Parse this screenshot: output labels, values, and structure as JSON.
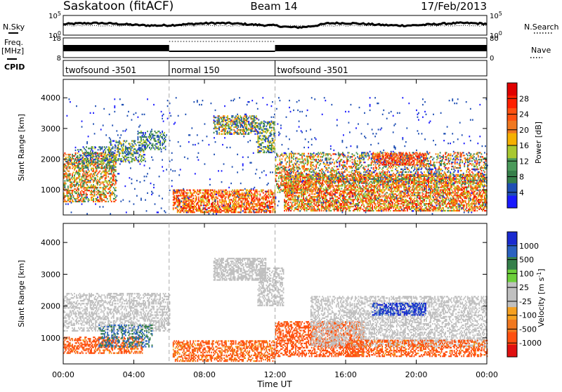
{
  "header": {
    "station": "Saskatoon (fitACF)",
    "beam": "Beam 14",
    "date": "17/Feb/2013"
  },
  "strip_labels": {
    "nsky": "N.Sky",
    "freq_line1": "Freq.",
    "freq_line2": "[MHz]",
    "cpid": "CPID",
    "nsearch": "N.Search",
    "nave": "Nave"
  },
  "noise_axis": {
    "left_ticks": [
      {
        "text": "10^5",
        "level": 1.0
      },
      {
        "text": "10^0",
        "level": 0.0
      }
    ],
    "right_ticks": [
      {
        "text": "10^5",
        "level": 1.0
      },
      {
        "text": "10^0",
        "level": 0.0
      }
    ]
  },
  "freq_axis": {
    "left_ticks": [
      {
        "text": "18",
        "level": 1.0
      },
      {
        "text": "8",
        "level": 0.0
      }
    ],
    "right_ticks": [
      {
        "text": "80",
        "level": 1.0
      },
      {
        "text": "0",
        "level": 0.0
      }
    ]
  },
  "cpid_segments": [
    {
      "label": "twofsound -3501",
      "start_hour": 0,
      "end_hour": 6
    },
    {
      "label": "normal 150",
      "start_hour": 6,
      "end_hour": 12
    },
    {
      "label": "twofsound -3501",
      "start_hour": 12,
      "end_hour": 24
    }
  ],
  "x_axis": {
    "label": "Time UT",
    "range_hours": [
      0,
      24
    ],
    "ticks": [
      {
        "hour": 0,
        "text": "00:00"
      },
      {
        "hour": 4,
        "text": "04:00"
      },
      {
        "hour": 8,
        "text": "08:00"
      },
      {
        "hour": 12,
        "text": "12:00"
      },
      {
        "hour": 16,
        "text": "16:00"
      },
      {
        "hour": 20,
        "text": "20:00"
      },
      {
        "hour": 24,
        "text": "00:00"
      }
    ],
    "dashed_markers_hours": [
      6,
      12
    ]
  },
  "range_axis": {
    "label": "Slant Range [km]",
    "range_km": [
      180,
      4600
    ],
    "ticks": [
      {
        "km": 1000,
        "text": "1000"
      },
      {
        "km": 2000,
        "text": "2000"
      },
      {
        "km": 3000,
        "text": "3000"
      },
      {
        "km": 4000,
        "text": "4000"
      }
    ]
  },
  "power_scale": {
    "label": "Power [dB]",
    "colors": [
      "#1a1aff",
      "#1f4fb4",
      "#357f4a",
      "#4a9a5a",
      "#a8c830",
      "#f5b000",
      "#f07820",
      "#ff5010",
      "#ff2000",
      "#e00000"
    ],
    "ticks": [
      "4",
      "8",
      "12",
      "16",
      "20",
      "24",
      "28"
    ]
  },
  "velocity_scale": {
    "label": "Velocity [m s^-1]",
    "colors": [
      "#e01010",
      "#ff5010",
      "#f07820",
      "#f5a020",
      "#c0c0c0",
      "#c0c0c0",
      "#6ccf3a",
      "#357f4a",
      "#2b62c0",
      "#1a2ad0"
    ],
    "ticks": [
      "-1000",
      "-500",
      "-100",
      "-25",
      "25",
      "100",
      "500",
      "1000"
    ]
  },
  "chart_data": {
    "type": "heatmap",
    "title": "Saskatoon (fitACF) Beam 14 17/Feb/2013",
    "xlabel": "Time UT",
    "ylabel": "Slant Range [km]",
    "xlim_hours": [
      0,
      24
    ],
    "ylim_km": [
      180,
      4600
    ],
    "panels": [
      {
        "name": "Power [dB]",
        "scatter_regions": [
          {
            "h0": 0.0,
            "h1": 3.0,
            "r0": 600,
            "r1": 2200,
            "values": [
              8,
              28
            ],
            "density": 0.5
          },
          {
            "h0": 0.8,
            "h1": 2.8,
            "r0": 1700,
            "r1": 2400,
            "values": [
              4,
              16
            ],
            "density": 0.3
          },
          {
            "h0": 2.6,
            "h1": 4.6,
            "r0": 1900,
            "r1": 2600,
            "values": [
              4,
              20
            ],
            "density": 0.4
          },
          {
            "h0": 4.2,
            "h1": 5.8,
            "r0": 2300,
            "r1": 2900,
            "values": [
              4,
              16
            ],
            "density": 0.4
          },
          {
            "h0": 6.2,
            "h1": 12.0,
            "r0": 250,
            "r1": 1000,
            "values": [
              16,
              30
            ],
            "density": 0.6
          },
          {
            "h0": 8.5,
            "h1": 11.0,
            "r0": 2800,
            "r1": 3400,
            "values": [
              4,
              24
            ],
            "density": 0.55
          },
          {
            "h0": 11.0,
            "h1": 12.0,
            "r0": 2200,
            "r1": 3200,
            "values": [
              4,
              20
            ],
            "density": 0.5
          },
          {
            "h0": 12.0,
            "h1": 14.0,
            "r0": 900,
            "r1": 2200,
            "values": [
              8,
              28
            ],
            "density": 0.4
          },
          {
            "h0": 12.5,
            "h1": 24.0,
            "r0": 300,
            "r1": 1500,
            "values": [
              12,
              30
            ],
            "density": 0.6
          },
          {
            "h0": 14.0,
            "h1": 24.0,
            "r0": 1200,
            "r1": 2200,
            "values": [
              4,
              28
            ],
            "density": 0.35
          },
          {
            "h0": 17.5,
            "h1": 20.5,
            "r0": 1800,
            "r1": 2200,
            "values": [
              20,
              30
            ],
            "density": 0.5
          },
          {
            "h0": 0.0,
            "h1": 24.0,
            "r0": 200,
            "r1": 4000,
            "values": [
              4,
              8
            ],
            "density": 0.02
          }
        ]
      },
      {
        "name": "Velocity [m s^-1]",
        "scatter_regions": [
          {
            "h0": 0.0,
            "h1": 6.0,
            "r0": 1200,
            "r1": 2400,
            "values": [
              -25,
              25
            ],
            "density": 0.45
          },
          {
            "h0": 0.0,
            "h1": 4.5,
            "r0": 500,
            "r1": 1000,
            "values": [
              -300,
              -25
            ],
            "density": 0.5
          },
          {
            "h0": 2.0,
            "h1": 5.0,
            "r0": 700,
            "r1": 1400,
            "values": [
              100,
              500
            ],
            "density": 0.35
          },
          {
            "h0": 6.2,
            "h1": 12.0,
            "r0": 250,
            "r1": 900,
            "values": [
              -200,
              -25
            ],
            "density": 0.5
          },
          {
            "h0": 8.5,
            "h1": 11.5,
            "r0": 2800,
            "r1": 3500,
            "values": [
              -25,
              25
            ],
            "density": 0.6
          },
          {
            "h0": 11.0,
            "h1": 12.5,
            "r0": 2000,
            "r1": 3200,
            "values": [
              -25,
              25
            ],
            "density": 0.5
          },
          {
            "h0": 12.0,
            "h1": 17.0,
            "r0": 400,
            "r1": 1500,
            "values": [
              -400,
              -50
            ],
            "density": 0.5
          },
          {
            "h0": 14.0,
            "h1": 24.0,
            "r0": 700,
            "r1": 2300,
            "values": [
              -25,
              25
            ],
            "density": 0.45
          },
          {
            "h0": 17.5,
            "h1": 20.5,
            "r0": 1700,
            "r1": 2100,
            "values": [
              500,
              1000
            ],
            "density": 0.5
          },
          {
            "h0": 16.0,
            "h1": 24.0,
            "r0": 400,
            "r1": 900,
            "values": [
              -300,
              -25
            ],
            "density": 0.45
          }
        ]
      }
    ]
  }
}
